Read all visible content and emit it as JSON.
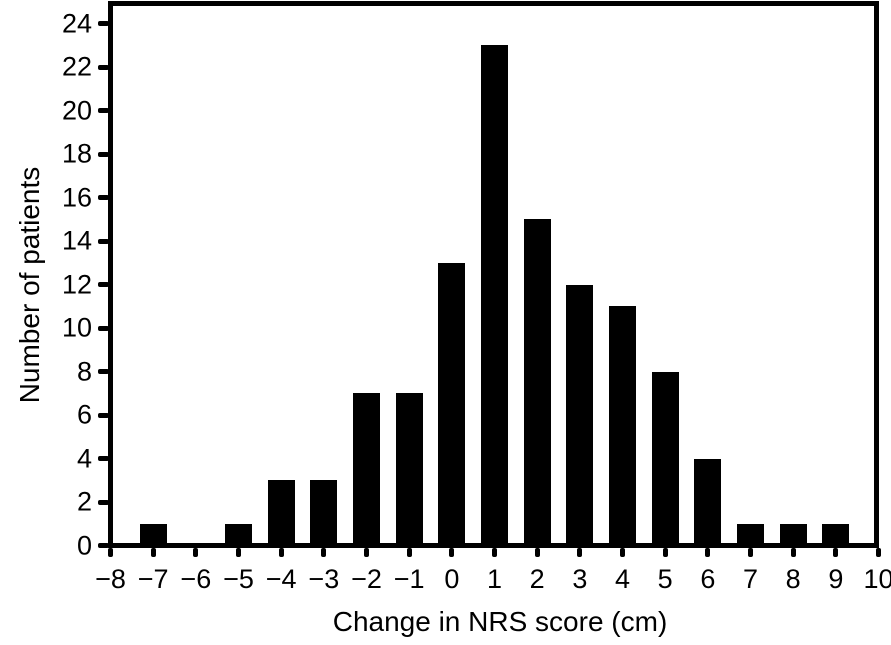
{
  "figure": {
    "background_color": "#ffffff",
    "foreground_color": "#000000"
  },
  "chart_data": {
    "type": "bar",
    "title": "",
    "xlabel": "Change in NRS score (cm)",
    "ylabel": "Number of patients",
    "x": [
      -8,
      -7,
      -6,
      -5,
      -4,
      -3,
      -2,
      -1,
      0,
      1,
      2,
      3,
      4,
      5,
      6,
      7,
      8,
      9,
      10
    ],
    "values": [
      0,
      1,
      0,
      1,
      3,
      3,
      7,
      7,
      13,
      23,
      15,
      12,
      11,
      8,
      4,
      1,
      1,
      1,
      0
    ],
    "x_tick_labels": [
      "−8",
      "−7",
      "−6",
      "−5",
      "−4",
      "−3",
      "−2",
      "−1",
      "0",
      "1",
      "2",
      "3",
      "4",
      "5",
      "6",
      "7",
      "8",
      "9",
      "10"
    ],
    "y_ticks": [
      0,
      2,
      4,
      6,
      8,
      10,
      12,
      14,
      16,
      18,
      20,
      22,
      24
    ],
    "y_tick_labels": [
      "0",
      "2",
      "4",
      "6",
      "8",
      "10",
      "12",
      "14",
      "16",
      "18",
      "20",
      "22",
      "24"
    ],
    "xlim": [
      -8,
      10
    ],
    "ylim": [
      0,
      25
    ],
    "bar_color": "#000000",
    "axis_color": "#000000",
    "grid": false,
    "legend": "none",
    "frame": true
  }
}
